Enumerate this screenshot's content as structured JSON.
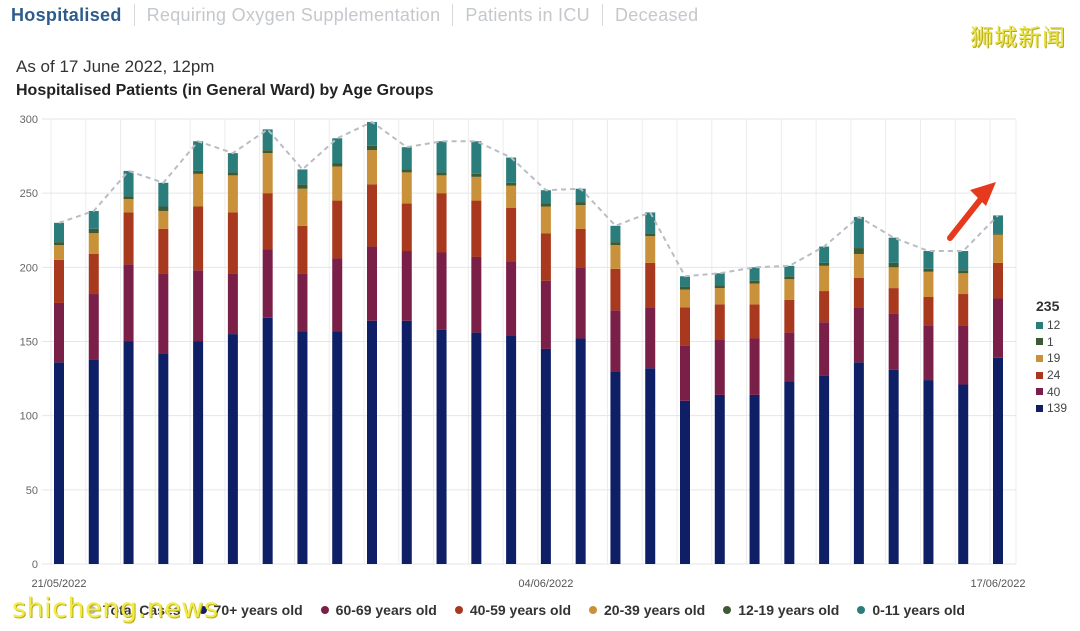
{
  "tabs": [
    {
      "label": "Hospitalised",
      "active": true
    },
    {
      "label": "Requiring Oxygen Supplementation",
      "active": false
    },
    {
      "label": "Patients in ICU",
      "active": false
    },
    {
      "label": "Deceased",
      "active": false
    }
  ],
  "watermarks": {
    "top_right": "狮城新闻",
    "bottom_left": "shicheng.news"
  },
  "as_of": "As of 17 June 2022, 12pm",
  "title": "Hospitalised Patients (in General Ward) by Age Groups",
  "side_legend": {
    "total": "235",
    "rows": [
      {
        "value": "12",
        "color": "#2a7d7b"
      },
      {
        "value": "1",
        "color": "#3e5a34"
      },
      {
        "value": "19",
        "color": "#c9913a"
      },
      {
        "value": "24",
        "color": "#a8381e"
      },
      {
        "value": "40",
        "color": "#7a1f48"
      },
      {
        "value": "139",
        "color": "#0f1f66"
      }
    ]
  },
  "bottom_legend": [
    {
      "label": "Total Cases",
      "color": "#b9bdc4"
    },
    {
      "label": "70+ years old",
      "color": "#0f1f66"
    },
    {
      "label": "60-69 years old",
      "color": "#7a1f48"
    },
    {
      "label": "40-59 years old",
      "color": "#a8381e"
    },
    {
      "label": "20-39 years old",
      "color": "#c9913a"
    },
    {
      "label": "12-19 years old",
      "color": "#3e5a34"
    },
    {
      "label": "0-11 years old",
      "color": "#2a7d7b"
    }
  ],
  "chart_data": {
    "type": "bar",
    "stacked": true,
    "title": "Hospitalised Patients (in General Ward) by Age Groups",
    "xlabel": "",
    "ylabel": "",
    "ylim": [
      0,
      300
    ],
    "yticks": [
      0,
      50,
      100,
      150,
      200,
      250,
      300
    ],
    "x_tick_labels": [
      "21/05/2022",
      "04/06/2022",
      "17/06/2022"
    ],
    "categories": [
      "21/05/2022",
      "22/05/2022",
      "23/05/2022",
      "24/05/2022",
      "25/05/2022",
      "26/05/2022",
      "27/05/2022",
      "28/05/2022",
      "29/05/2022",
      "30/05/2022",
      "31/05/2022",
      "01/06/2022",
      "02/06/2022",
      "03/06/2022",
      "04/06/2022",
      "05/06/2022",
      "06/06/2022",
      "07/06/2022",
      "08/06/2022",
      "09/06/2022",
      "10/06/2022",
      "11/06/2022",
      "12/06/2022",
      "13/06/2022",
      "14/06/2022",
      "15/06/2022",
      "16/06/2022",
      "17/06/2022"
    ],
    "series": [
      {
        "name": "70+ years old",
        "color": "#0f1f66",
        "values": [
          136,
          138,
          150,
          142,
          150,
          155,
          166,
          157,
          157,
          164,
          164,
          158,
          156,
          154,
          145,
          152,
          130,
          132,
          110,
          114,
          114,
          123,
          127,
          136,
          131,
          124,
          121,
          139
        ]
      },
      {
        "name": "60-69 years old",
        "color": "#7a1f48",
        "values": [
          40,
          44,
          52,
          54,
          48,
          41,
          46,
          39,
          49,
          50,
          47,
          52,
          51,
          50,
          46,
          48,
          41,
          41,
          37,
          37,
          38,
          33,
          36,
          37,
          38,
          37,
          40,
          40
        ]
      },
      {
        "name": "40-59 years old",
        "color": "#a8381e",
        "values": [
          29,
          27,
          35,
          30,
          43,
          41,
          38,
          32,
          39,
          42,
          32,
          40,
          38,
          36,
          32,
          26,
          28,
          30,
          26,
          24,
          23,
          22,
          21,
          20,
          17,
          19,
          21,
          24
        ]
      },
      {
        "name": "20-39 years old",
        "color": "#c9913a",
        "values": [
          10,
          14,
          9,
          12,
          22,
          25,
          27,
          25,
          23,
          23,
          21,
          12,
          16,
          15,
          18,
          16,
          16,
          18,
          12,
          11,
          14,
          14,
          17,
          16,
          14,
          17,
          14,
          19
        ]
      },
      {
        "name": "12-19 years old",
        "color": "#3e5a34",
        "values": [
          2,
          3,
          2,
          3,
          2,
          2,
          2,
          3,
          2,
          3,
          2,
          2,
          2,
          2,
          2,
          2,
          2,
          2,
          2,
          2,
          2,
          2,
          2,
          4,
          3,
          2,
          2,
          1
        ]
      },
      {
        "name": "0-11 years old",
        "color": "#2a7d7b",
        "values": [
          13,
          12,
          17,
          16,
          20,
          13,
          14,
          10,
          17,
          16,
          15,
          21,
          22,
          17,
          9,
          9,
          11,
          14,
          7,
          8,
          9,
          7,
          11,
          21,
          17,
          12,
          13,
          12
        ]
      }
    ],
    "total_series": {
      "name": "Total Cases",
      "values": [
        230,
        238,
        265,
        257,
        285,
        277,
        293,
        266,
        287,
        298,
        281,
        285,
        285,
        274,
        252,
        253,
        228,
        237,
        194,
        196,
        200,
        201,
        214,
        234,
        220,
        211,
        211,
        235
      ]
    },
    "annotation": "red arrow pointing at latest total"
  }
}
